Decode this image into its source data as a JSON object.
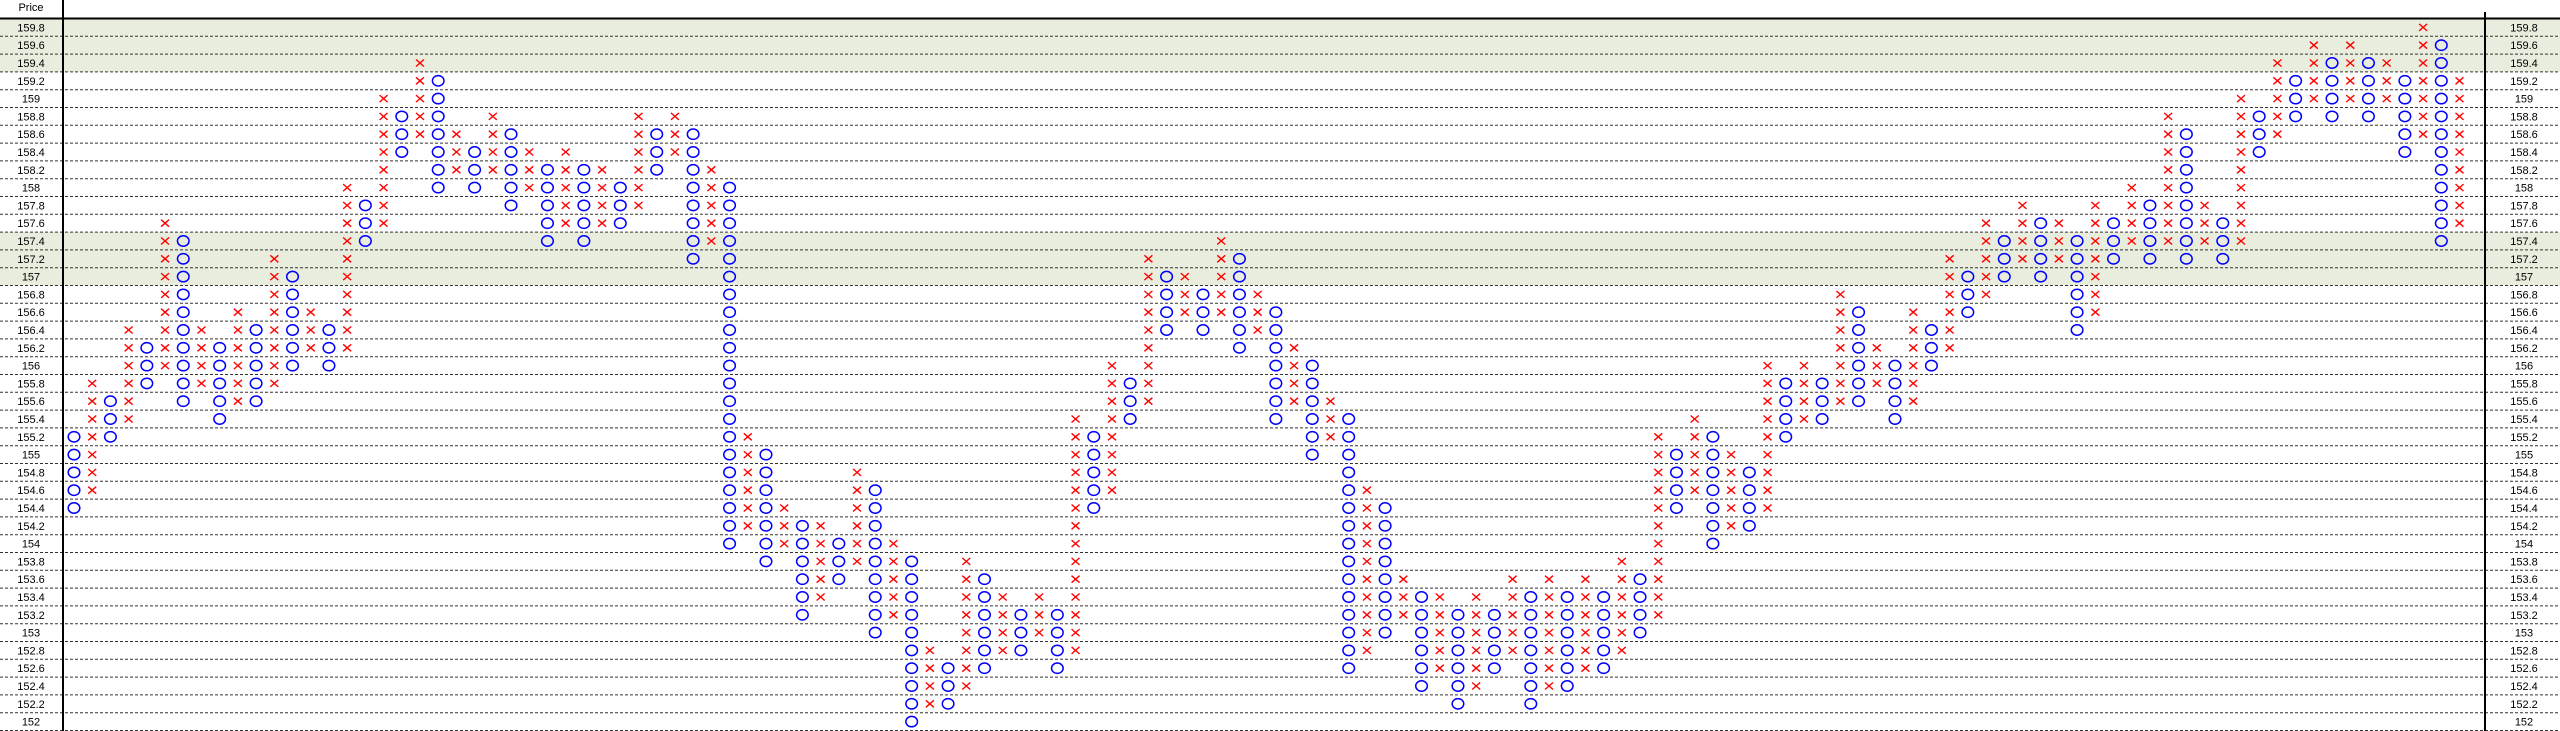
{
  "header": {
    "price_label": "Price"
  },
  "colors": {
    "x_mark": "#ff0000",
    "o_mark": "#0000ff",
    "band": "#e9eddd",
    "grid": "#333333"
  },
  "chart_data": {
    "type": "point-and-figure",
    "box_size": 0.2,
    "ylim": [
      152,
      159.8
    ],
    "grid": true,
    "price_levels": [
      "159.8",
      "159.6",
      "159.4",
      "159.2",
      "159",
      "158.8",
      "158.6",
      "158.4",
      "158.2",
      "158",
      "157.8",
      "157.6",
      "157.4",
      "157.2",
      "157",
      "156.8",
      "156.6",
      "156.4",
      "156.2",
      "156",
      "155.8",
      "155.6",
      "155.4",
      "155.2",
      "155",
      "154.8",
      "154.6",
      "154.4",
      "154.2",
      "154",
      "153.8",
      "153.6",
      "153.4",
      "153.2",
      "153",
      "152.8",
      "152.6",
      "152.4",
      "152.2",
      "152"
    ],
    "shaded_bands": [
      [
        159.4,
        159.8
      ],
      [
        157,
        157.4
      ]
    ],
    "columns": [
      [
        "O",
        155.2,
        154.4
      ],
      [
        "X",
        155.8,
        154.6
      ],
      [
        "O",
        155.6,
        155.2
      ],
      [
        "X",
        156.4,
        155.4
      ],
      [
        "O",
        156.2,
        155.8
      ],
      [
        "X",
        157.6,
        156
      ],
      [
        "O",
        157.4,
        155.6
      ],
      [
        "X",
        156.4,
        155.8
      ],
      [
        "O",
        156.2,
        155.4
      ],
      [
        "X",
        156.6,
        155.6
      ],
      [
        "O",
        156.4,
        155.6
      ],
      [
        "X",
        157.2,
        155.8
      ],
      [
        "O",
        157,
        156
      ],
      [
        "X",
        156.6,
        156.2
      ],
      [
        "O",
        156.4,
        156
      ],
      [
        "X",
        158,
        156.2
      ],
      [
        "O",
        157.8,
        157.4
      ],
      [
        "X",
        159,
        157.6
      ],
      [
        "O",
        158.8,
        158.4
      ],
      [
        "X",
        159.4,
        158.6
      ],
      [
        "O",
        159.2,
        158
      ],
      [
        "X",
        158.6,
        158.2
      ],
      [
        "O",
        158.4,
        158
      ],
      [
        "X",
        158.8,
        158.2
      ],
      [
        "O",
        158.6,
        157.8
      ],
      [
        "X",
        158.4,
        158
      ],
      [
        "O",
        158.2,
        157.4
      ],
      [
        "X",
        158.4,
        157.6
      ],
      [
        "O",
        158.2,
        157.4
      ],
      [
        "X",
        158.2,
        157.6
      ],
      [
        "O",
        158,
        157.6
      ],
      [
        "X",
        158.8,
        157.8
      ],
      [
        "O",
        158.6,
        158.2
      ],
      [
        "X",
        158.8,
        158.4
      ],
      [
        "O",
        158.6,
        157.2
      ],
      [
        "X",
        158.2,
        157.4
      ],
      [
        "O",
        158,
        154
      ],
      [
        "X",
        155.2,
        154.2
      ],
      [
        "O",
        155,
        153.8
      ],
      [
        "X",
        154.4,
        154
      ],
      [
        "O",
        154.2,
        153.2
      ],
      [
        "X",
        154.2,
        153.4
      ],
      [
        "O",
        154,
        153.6
      ],
      [
        "X",
        154.8,
        153.8
      ],
      [
        "O",
        154.6,
        153
      ],
      [
        "X",
        154,
        153.2
      ],
      [
        "O",
        153.8,
        152
      ],
      [
        "X",
        152.8,
        152.2
      ],
      [
        "O",
        152.6,
        152.2
      ],
      [
        "X",
        153.8,
        152.4
      ],
      [
        "O",
        153.6,
        152.6
      ],
      [
        "X",
        153.4,
        152.8
      ],
      [
        "O",
        153.2,
        152.8
      ],
      [
        "X",
        153.4,
        153
      ],
      [
        "O",
        153.2,
        152.6
      ],
      [
        "X",
        155.4,
        152.8
      ],
      [
        "O",
        155.2,
        154.4
      ],
      [
        "X",
        156,
        154.6
      ],
      [
        "O",
        155.8,
        155.4
      ],
      [
        "X",
        157.2,
        155.6
      ],
      [
        "O",
        157,
        156.4
      ],
      [
        "X",
        157,
        156.6
      ],
      [
        "O",
        156.8,
        156.4
      ],
      [
        "X",
        157.4,
        156.6
      ],
      [
        "O",
        157.2,
        156.2
      ],
      [
        "X",
        156.8,
        156.4
      ],
      [
        "O",
        156.6,
        155.4
      ],
      [
        "X",
        156.2,
        155.6
      ],
      [
        "O",
        156,
        155
      ],
      [
        "X",
        155.6,
        155.2
      ],
      [
        "O",
        155.4,
        152.6
      ],
      [
        "X",
        154.6,
        152.8
      ],
      [
        "O",
        154.4,
        153
      ],
      [
        "X",
        153.6,
        153.2
      ],
      [
        "O",
        153.4,
        152.4
      ],
      [
        "X",
        153.4,
        152.6
      ],
      [
        "O",
        153.2,
        152.2
      ],
      [
        "X",
        153.4,
        152.4
      ],
      [
        "O",
        153.2,
        152.6
      ],
      [
        "X",
        153.6,
        152.8
      ],
      [
        "O",
        153.4,
        152.2
      ],
      [
        "X",
        153.6,
        152.4
      ],
      [
        "O",
        153.4,
        152.4
      ],
      [
        "X",
        153.6,
        152.6
      ],
      [
        "O",
        153.4,
        152.6
      ],
      [
        "X",
        153.8,
        152.8
      ],
      [
        "O",
        153.6,
        153
      ],
      [
        "X",
        155.2,
        153.2
      ],
      [
        "O",
        155,
        154.4
      ],
      [
        "X",
        155.4,
        154.6
      ],
      [
        "O",
        155.2,
        154
      ],
      [
        "X",
        155,
        154.2
      ],
      [
        "O",
        154.8,
        154.2
      ],
      [
        "X",
        156,
        154.4
      ],
      [
        "O",
        155.8,
        155.2
      ],
      [
        "X",
        156,
        155.4
      ],
      [
        "O",
        155.8,
        155.4
      ],
      [
        "X",
        156.8,
        155.6
      ],
      [
        "O",
        156.6,
        155.6
      ],
      [
        "X",
        156.2,
        155.8
      ],
      [
        "O",
        156,
        155.4
      ],
      [
        "X",
        156.6,
        155.6
      ],
      [
        "O",
        156.4,
        156
      ],
      [
        "X",
        157.2,
        156.2
      ],
      [
        "O",
        157,
        156.6
      ],
      [
        "X",
        157.6,
        156.8
      ],
      [
        "O",
        157.4,
        157
      ],
      [
        "X",
        157.8,
        157.2
      ],
      [
        "O",
        157.6,
        157
      ],
      [
        "X",
        157.6,
        157.2
      ],
      [
        "O",
        157.4,
        156.4
      ],
      [
        "X",
        157.8,
        156.6
      ],
      [
        "O",
        157.6,
        157.2
      ],
      [
        "X",
        158,
        157.4
      ],
      [
        "O",
        157.8,
        157.2
      ],
      [
        "X",
        158.8,
        157.4
      ],
      [
        "O",
        158.6,
        157.2
      ],
      [
        "X",
        157.8,
        157.4
      ],
      [
        "O",
        157.6,
        157.2
      ],
      [
        "X",
        159,
        157.4
      ],
      [
        "O",
        158.8,
        158.4
      ],
      [
        "X",
        159.4,
        158.6
      ],
      [
        "O",
        159.2,
        158.8
      ],
      [
        "X",
        159.6,
        159
      ],
      [
        "O",
        159.4,
        158.8
      ],
      [
        "X",
        159.6,
        159
      ],
      [
        "O",
        159.4,
        158.8
      ],
      [
        "X",
        159.4,
        159
      ],
      [
        "O",
        159.2,
        158.4
      ],
      [
        "X",
        159.8,
        158.6
      ],
      [
        "O",
        159.6,
        157.4
      ],
      [
        "X",
        159.2,
        157.6
      ]
    ]
  }
}
